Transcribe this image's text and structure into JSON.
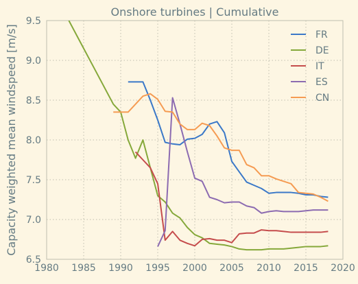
{
  "chart_data": {
    "type": "line",
    "title": "Onshore turbines | Cumulative",
    "xlabel": "",
    "ylabel": "Capacity weighted mean windspeed [m/s]",
    "xlim": [
      1980,
      2020
    ],
    "ylim": [
      6.5,
      9.5
    ],
    "xticks": [
      "1980",
      "1985",
      "1990",
      "1995",
      "2000",
      "2005",
      "2010",
      "2015",
      "2020"
    ],
    "yticks": [
      "6.5",
      "7.0",
      "7.5",
      "8.0",
      "8.5",
      "9.0",
      "9.5"
    ],
    "grid": true,
    "legend_position": "top-right",
    "colors": {
      "background": "#fdf6e3",
      "text": "#657b83",
      "grid": "#bfbfaf",
      "frame": "#bfbfaf"
    },
    "series": [
      {
        "name": "FR",
        "color": "#3a78c8",
        "x": [
          1991,
          1992,
          1993,
          1994,
          1995,
          1996,
          1997,
          1998,
          1999,
          2000,
          2001,
          2002,
          2003,
          2004,
          2005,
          2006,
          2007,
          2008,
          2009,
          2010,
          2011,
          2012,
          2013,
          2014,
          2015,
          2016,
          2017,
          2018
        ],
        "y": [
          8.73,
          8.73,
          8.73,
          8.5,
          8.25,
          7.97,
          7.95,
          7.94,
          8.01,
          8.02,
          8.07,
          8.2,
          8.23,
          8.09,
          7.73,
          7.6,
          7.47,
          7.43,
          7.39,
          7.33,
          7.34,
          7.34,
          7.34,
          7.33,
          7.31,
          7.31,
          7.29,
          7.28
        ]
      },
      {
        "name": "DE",
        "color": "#85a83a",
        "x": [
          1983,
          1985,
          1987,
          1989,
          1990,
          1991,
          1992,
          1993,
          1994,
          1995,
          1996,
          1997,
          1998,
          1999,
          2000,
          2001,
          2002,
          2003,
          2004,
          2005,
          2006,
          2007,
          2008,
          2009,
          2010,
          2011,
          2012,
          2013,
          2014,
          2015,
          2016,
          2017,
          2018
        ],
        "y": [
          9.5,
          9.15,
          8.8,
          8.45,
          8.35,
          8.0,
          7.77,
          8.0,
          7.65,
          7.3,
          7.22,
          7.08,
          7.02,
          6.9,
          6.81,
          6.77,
          6.7,
          6.69,
          6.68,
          6.66,
          6.63,
          6.62,
          6.62,
          6.62,
          6.63,
          6.63,
          6.63,
          6.64,
          6.65,
          6.66,
          6.66,
          6.66,
          6.67
        ]
      },
      {
        "name": "IT",
        "color": "#c54c4c",
        "x": [
          1992,
          1993,
          1994,
          1995,
          1996,
          1997,
          1998,
          1999,
          2000,
          2001,
          2002,
          2003,
          2004,
          2005,
          2006,
          2007,
          2008,
          2009,
          2010,
          2011,
          2012,
          2013,
          2014,
          2015,
          2016,
          2017,
          2018
        ],
        "y": [
          7.85,
          7.75,
          7.65,
          7.45,
          6.74,
          6.85,
          6.74,
          6.7,
          6.67,
          6.75,
          6.76,
          6.74,
          6.74,
          6.71,
          6.82,
          6.83,
          6.83,
          6.87,
          6.86,
          6.86,
          6.85,
          6.84,
          6.84,
          6.84,
          6.84,
          6.84,
          6.85
        ]
      },
      {
        "name": "ES",
        "color": "#8c6bb1",
        "x": [
          1995,
          1996,
          1997,
          1998,
          1999,
          2000,
          2001,
          2002,
          2003,
          2004,
          2005,
          2006,
          2007,
          2008,
          2009,
          2010,
          2011,
          2012,
          2013,
          2014,
          2015,
          2016,
          2017,
          2018
        ],
        "y": [
          6.66,
          6.86,
          8.53,
          8.2,
          7.85,
          7.52,
          7.48,
          7.28,
          7.25,
          7.21,
          7.22,
          7.22,
          7.17,
          7.15,
          7.08,
          7.1,
          7.11,
          7.1,
          7.1,
          7.1,
          7.11,
          7.12,
          7.12,
          7.12
        ]
      },
      {
        "name": "CN",
        "color": "#f59b52",
        "x": [
          1989,
          1990,
          1991,
          1992,
          1993,
          1994,
          1995,
          1996,
          1997,
          1998,
          1999,
          2000,
          2001,
          2002,
          2003,
          2004,
          2005,
          2006,
          2007,
          2008,
          2009,
          2010,
          2011,
          2012,
          2013,
          2014,
          2015,
          2016,
          2017,
          2018
        ],
        "y": [
          8.35,
          8.35,
          8.35,
          8.45,
          8.55,
          8.58,
          8.51,
          8.36,
          8.35,
          8.2,
          8.13,
          8.13,
          8.21,
          8.18,
          8.05,
          7.9,
          7.87,
          7.87,
          7.69,
          7.65,
          7.55,
          7.55,
          7.51,
          7.48,
          7.45,
          7.34,
          7.33,
          7.32,
          7.28,
          7.23
        ]
      }
    ]
  }
}
